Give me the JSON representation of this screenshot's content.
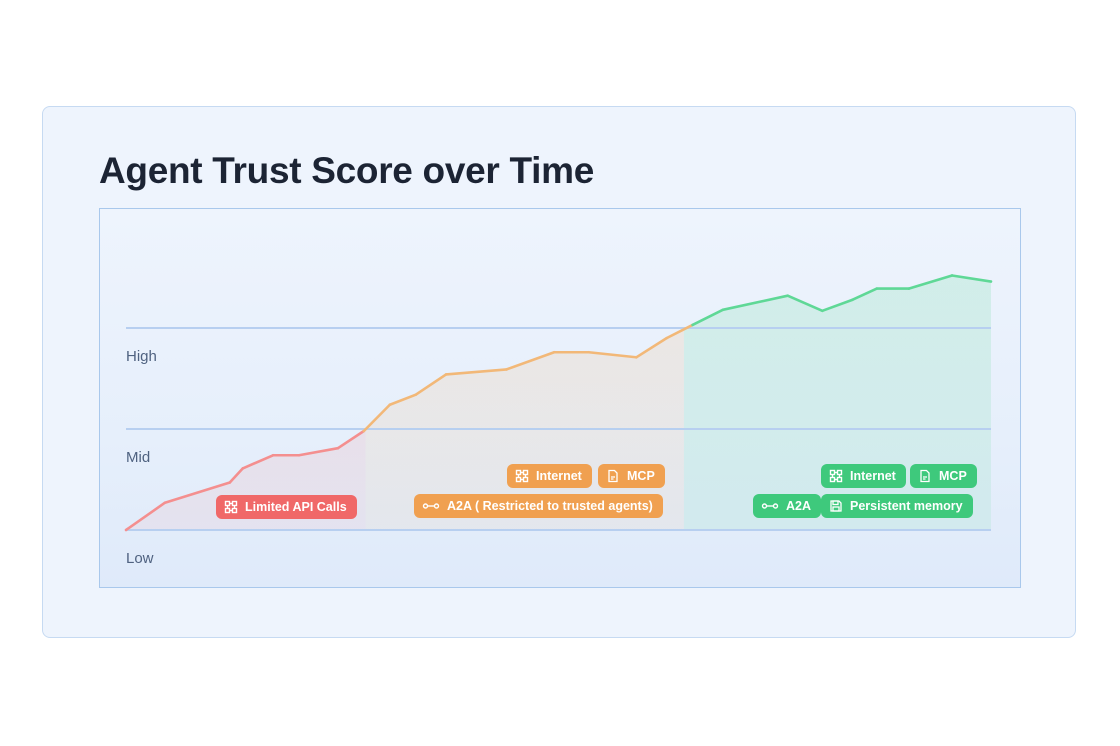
{
  "title": "Agent Trust Score over Time",
  "colors": {
    "low": "#f48f8f",
    "mid": "#f2b878",
    "high": "#5fd896",
    "threshold": "#b7cff0"
  },
  "chart_data": {
    "type": "line",
    "y_levels": [
      "Low",
      "Mid",
      "High"
    ],
    "y_level_values": [
      0,
      1,
      2
    ],
    "ylim": [
      0,
      2.5
    ],
    "xlim": [
      0,
      1
    ],
    "grid": false,
    "points": [
      [
        0.0,
        0.0
      ],
      [
        0.045,
        0.27
      ],
      [
        0.12,
        0.47
      ],
      [
        0.135,
        0.61
      ],
      [
        0.17,
        0.74
      ],
      [
        0.2,
        0.74
      ],
      [
        0.245,
        0.81
      ],
      [
        0.275,
        0.98
      ],
      [
        0.305,
        1.24
      ],
      [
        0.335,
        1.34
      ],
      [
        0.37,
        1.54
      ],
      [
        0.44,
        1.59
      ],
      [
        0.495,
        1.76
      ],
      [
        0.535,
        1.76
      ],
      [
        0.59,
        1.71
      ],
      [
        0.625,
        1.9
      ],
      [
        0.655,
        2.03
      ],
      [
        0.69,
        2.18
      ],
      [
        0.765,
        2.32
      ],
      [
        0.805,
        2.17
      ],
      [
        0.84,
        2.28
      ],
      [
        0.868,
        2.39
      ],
      [
        0.905,
        2.39
      ],
      [
        0.955,
        2.52
      ],
      [
        1.0,
        2.46
      ]
    ],
    "zones": [
      {
        "name": "low",
        "x_end": 0.277
      },
      {
        "name": "mid",
        "x_end": 0.645
      },
      {
        "name": "high",
        "x_end": 1.0
      }
    ]
  },
  "permissions": {
    "low": [
      {
        "label": "Limited API Calls",
        "icon": "network-icon"
      }
    ],
    "mid": {
      "row1": [
        {
          "label": "Internet",
          "icon": "network-icon"
        },
        {
          "label": "MCP",
          "icon": "file-icon"
        }
      ],
      "row2": [
        {
          "label": "A2A ( Restricted to  trusted agents)",
          "icon": "link-icon"
        }
      ]
    },
    "high": {
      "row1": [
        {
          "label": "Internet",
          "icon": "network-icon"
        },
        {
          "label": "MCP",
          "icon": "file-icon"
        }
      ],
      "row2": [
        {
          "label": "A2A",
          "icon": "link-icon"
        },
        {
          "label": "Persistent memory",
          "icon": "save-icon"
        }
      ]
    }
  }
}
